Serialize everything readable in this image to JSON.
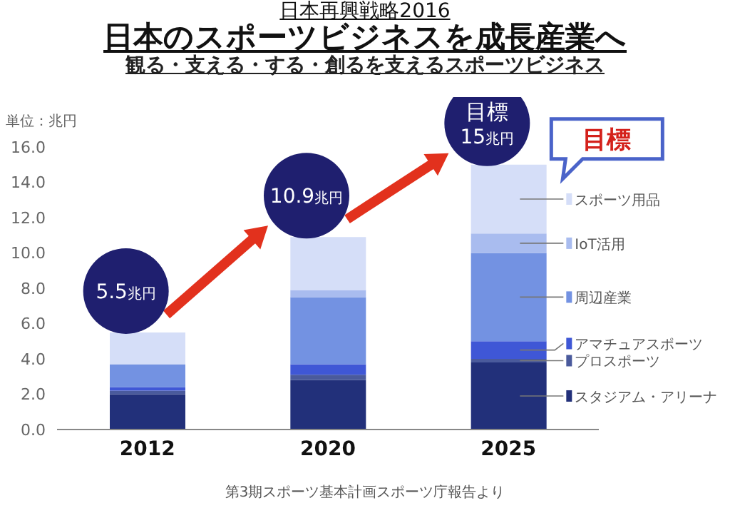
{
  "chart_data": {
    "type": "bar",
    "title": "日本のスポーツビジネスを成長産業へ",
    "subtitle": "観る・支える・する・創るを支えるスポーツビジネス",
    "ylabel": "単位：兆円",
    "categories": [
      "2012",
      "2020",
      "2025"
    ],
    "series": [
      {
        "name": "スタジアム・アリーナ",
        "color": "#22307a",
        "values": [
          2.0,
          2.8,
          3.8
        ]
      },
      {
        "name": "プロスポーツ",
        "color": "#4a5a9c",
        "values": [
          0.2,
          0.3,
          0.2
        ]
      },
      {
        "name": "アマチュアスポーツ",
        "color": "#3f57d6",
        "values": [
          0.2,
          0.6,
          1.0
        ]
      },
      {
        "name": "周辺産業",
        "color": "#7392e2",
        "values": [
          1.3,
          3.8,
          5.0
        ]
      },
      {
        "name": "IoT活用",
        "color": "#a9bcef",
        "values": [
          0,
          0.4,
          1.1
        ]
      },
      {
        "name": "スポーツ用品",
        "color": "#d5def8",
        "values": [
          1.8,
          3.0,
          3.9
        ]
      }
    ],
    "stacked": true,
    "legend": "right",
    "ylim": [
      0,
      16
    ],
    "yticks": [
      {
        "value": 0,
        "label": "0.0"
      },
      {
        "value": 2,
        "label": "2.0"
      },
      {
        "value": 4,
        "label": "4.0"
      },
      {
        "value": 6,
        "label": "6.0"
      },
      {
        "value": 8,
        "label": "8.0"
      },
      {
        "value": 10,
        "label": "10.0"
      },
      {
        "value": 12,
        "label": "12.0"
      },
      {
        "value": 14,
        "label": "14.0"
      },
      {
        "value": 16,
        "label": "16.0"
      }
    ],
    "annotations": [
      "日本再興戦略2016",
      {
        "text": "5.5兆円",
        "x": "2012",
        "y": 5.5
      },
      {
        "text": "10.9兆円",
        "x": "2020",
        "y": 10.9
      },
      {
        "text": "目標 15兆円",
        "x": "2025",
        "y": 15
      },
      "目標",
      "第3期スポーツ基本計画スポーツ庁報告より"
    ]
  }
}
